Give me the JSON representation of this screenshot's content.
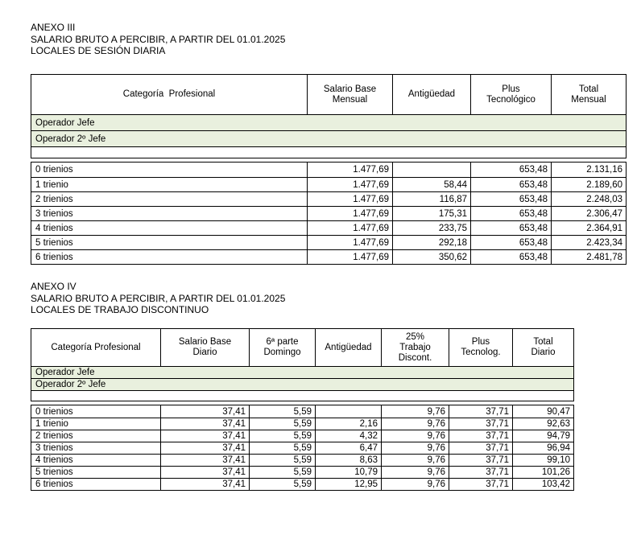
{
  "colors": {
    "band_green": "#e9f0de",
    "border": "#000000",
    "page_bg": "#ffffff"
  },
  "sections": [
    {
      "name": "ANEXO III",
      "title_lines": [
        "ANEXO III",
        "SALARIO BRUTO A PERCIBIR, A PARTIR DEL 01.01.2025",
        "LOCALES DE SESIÓN DIARIA"
      ],
      "table": {
        "headers": [
          "Categoría  Profesional",
          "Salario Base\nMensual",
          "Antigüedad",
          "Plus\nTecnológico",
          "Total\nMensual"
        ],
        "category_bands": [
          "Operador Jefe",
          "Operador 2º Jefe"
        ],
        "rows": [
          [
            "0 trienios",
            "1.477,69",
            "",
            "653,48",
            "2.131,16"
          ],
          [
            "1 trienio",
            "1.477,69",
            "58,44",
            "653,48",
            "2.189,60"
          ],
          [
            "2 trienios",
            "1.477,69",
            "116,87",
            "653,48",
            "2.248,03"
          ],
          [
            "3 trienios",
            "1.477,69",
            "175,31",
            "653,48",
            "2.306,47"
          ],
          [
            "4 trienios",
            "1.477,69",
            "233,75",
            "653,48",
            "2.364,91"
          ],
          [
            "5 trienios",
            "1.477,69",
            "292,18",
            "653,48",
            "2.423,34"
          ],
          [
            "6 trienios",
            "1.477,69",
            "350,62",
            "653,48",
            "2.481,78"
          ]
        ]
      }
    },
    {
      "name": "ANEXO IV",
      "title_lines": [
        "ANEXO IV",
        "SALARIO BRUTO A PERCIBIR, A PARTIR DEL 01.01.2025",
        "LOCALES DE TRABAJO DISCONTINUO"
      ],
      "table": {
        "headers": [
          "Categoría Profesional",
          "Salario Base\nDiario",
          "6ª parte\nDomingo",
          "Antigüedad",
          "25%\nTrabajo\nDiscont.",
          "Plus\nTecnolog.",
          "Total\nDiario"
        ],
        "category_bands": [
          "Operador Jefe",
          "Operador 2º Jefe"
        ],
        "rows": [
          [
            "0 trienios",
            "37,41",
            "5,59",
            "",
            "9,76",
            "37,71",
            "90,47"
          ],
          [
            "1 trienio",
            "37,41",
            "5,59",
            "2,16",
            "9,76",
            "37,71",
            "92,63"
          ],
          [
            "2 trienios",
            "37,41",
            "5,59",
            "4,32",
            "9,76",
            "37,71",
            "94,79"
          ],
          [
            "3 trienios",
            "37,41",
            "5,59",
            "6,47",
            "9,76",
            "37,71",
            "96,94"
          ],
          [
            "4 trienios",
            "37,41",
            "5,59",
            "8,63",
            "9,76",
            "37,71",
            "99,10"
          ],
          [
            "5 trienios",
            "37,41",
            "5,59",
            "10,79",
            "9,76",
            "37,71",
            "101,26"
          ],
          [
            "6 trienios",
            "37,41",
            "5,59",
            "12,95",
            "9,76",
            "37,71",
            "103,42"
          ]
        ]
      }
    }
  ]
}
